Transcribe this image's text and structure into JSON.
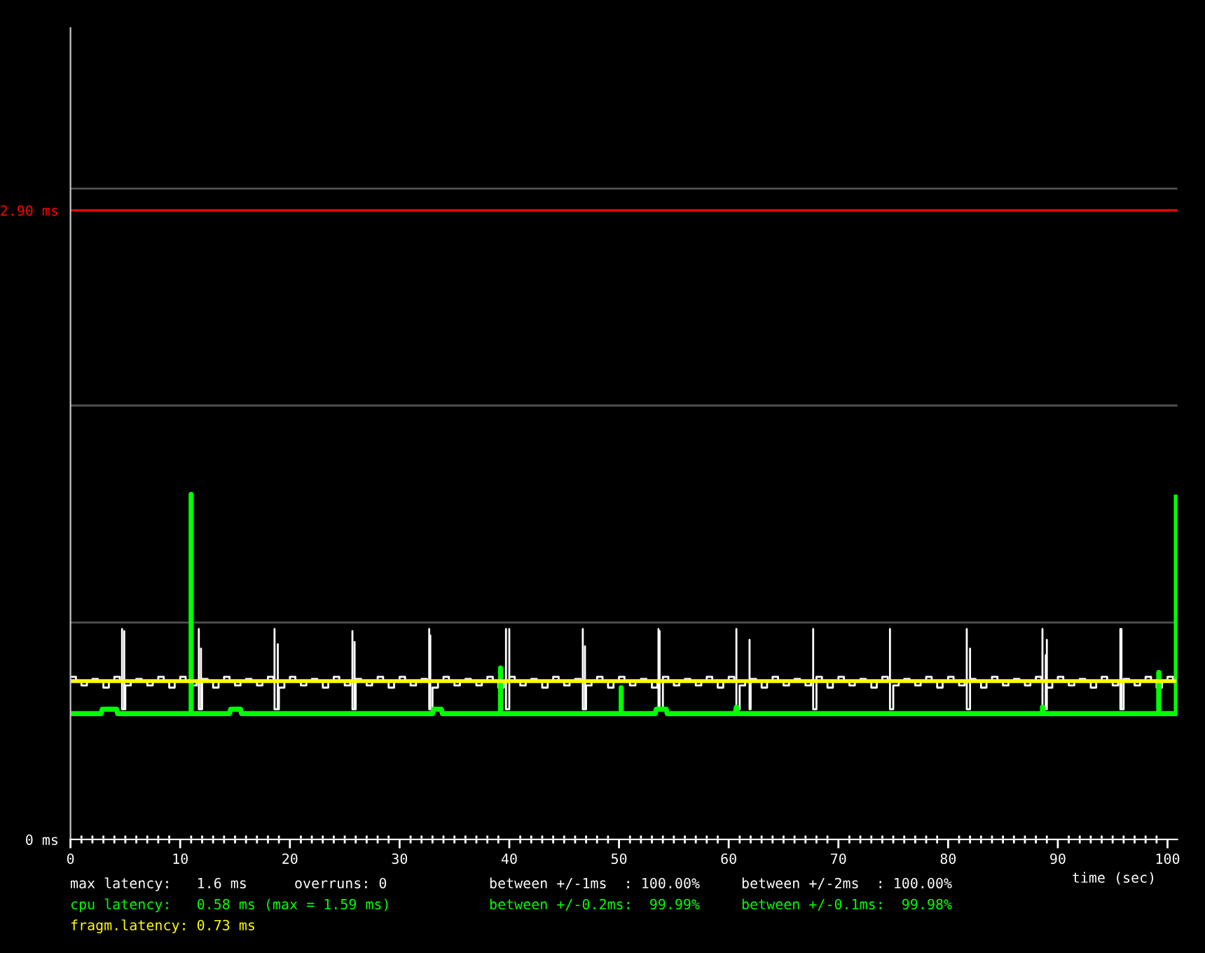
{
  "chart_data": {
    "type": "line",
    "xlabel": "time (sec)",
    "xlim": [
      0,
      100.9
    ],
    "xticks": [
      0,
      {
        "value": 1,
        "label": null
      },
      {
        "value": 2,
        "label": null
      },
      {
        "value": 3,
        "label": null
      },
      {
        "value": 4,
        "label": null
      },
      {
        "value": 5,
        "label": null
      },
      {
        "value": 6,
        "label": null
      },
      {
        "value": 7,
        "label": null
      },
      {
        "value": 8,
        "label": null
      },
      {
        "value": 9,
        "label": null
      },
      10,
      {
        "value": 11,
        "label": null
      },
      {
        "value": 12,
        "label": null
      },
      {
        "value": 13,
        "label": null
      },
      {
        "value": 14,
        "label": null
      },
      {
        "value": 15,
        "label": null
      },
      {
        "value": 16,
        "label": null
      },
      {
        "value": 17,
        "label": null
      },
      {
        "value": 18,
        "label": null
      },
      {
        "value": 19,
        "label": null
      },
      20,
      {
        "value": 21,
        "label": null
      },
      {
        "value": 22,
        "label": null
      },
      {
        "value": 23,
        "label": null
      },
      {
        "value": 24,
        "label": null
      },
      {
        "value": 25,
        "label": null
      },
      {
        "value": 26,
        "label": null
      },
      {
        "value": 27,
        "label": null
      },
      {
        "value": 28,
        "label": null
      },
      {
        "value": 29,
        "label": null
      },
      30,
      {
        "value": 31,
        "label": null
      },
      {
        "value": 32,
        "label": null
      },
      {
        "value": 33,
        "label": null
      },
      {
        "value": 34,
        "label": null
      },
      {
        "value": 35,
        "label": null
      },
      {
        "value": 36,
        "label": null
      },
      {
        "value": 37,
        "label": null
      },
      {
        "value": 38,
        "label": null
      },
      {
        "value": 39,
        "label": null
      },
      40,
      {
        "value": 41,
        "label": null
      },
      {
        "value": 42,
        "label": null
      },
      {
        "value": 43,
        "label": null
      },
      {
        "value": 44,
        "label": null
      },
      {
        "value": 45,
        "label": null
      },
      {
        "value": 46,
        "label": null
      },
      {
        "value": 47,
        "label": null
      },
      {
        "value": 48,
        "label": null
      },
      {
        "value": 49,
        "label": null
      },
      50,
      {
        "value": 51,
        "label": null
      },
      {
        "value": 52,
        "label": null
      },
      {
        "value": 53,
        "label": null
      },
      {
        "value": 54,
        "label": null
      },
      {
        "value": 55,
        "label": null
      },
      {
        "value": 56,
        "label": null
      },
      {
        "value": 57,
        "label": null
      },
      {
        "value": 58,
        "label": null
      },
      {
        "value": 59,
        "label": null
      },
      60,
      {
        "value": 61,
        "label": null
      },
      {
        "value": 62,
        "label": null
      },
      {
        "value": 63,
        "label": null
      },
      {
        "value": 64,
        "label": null
      },
      {
        "value": 65,
        "label": null
      },
      {
        "value": 66,
        "label": null
      },
      {
        "value": 67,
        "label": null
      },
      {
        "value": 68,
        "label": null
      },
      {
        "value": 69,
        "label": null
      },
      70,
      {
        "value": 71,
        "label": null
      },
      {
        "value": 72,
        "label": null
      },
      {
        "value": 73,
        "label": null
      },
      {
        "value": 74,
        "label": null
      },
      {
        "value": 75,
        "label": null
      },
      {
        "value": 76,
        "label": null
      },
      {
        "value": 77,
        "label": null
      },
      {
        "value": 78,
        "label": null
      },
      {
        "value": 79,
        "label": null
      },
      80,
      {
        "value": 81,
        "label": null
      },
      {
        "value": 82,
        "label": null
      },
      {
        "value": 83,
        "label": null
      },
      {
        "value": 84,
        "label": null
      },
      {
        "value": 85,
        "label": null
      },
      {
        "value": 86,
        "label": null
      },
      {
        "value": 87,
        "label": null
      },
      {
        "value": 88,
        "label": null
      },
      {
        "value": 89,
        "label": null
      },
      90,
      {
        "value": 91,
        "label": null
      },
      {
        "value": 92,
        "label": null
      },
      {
        "value": 93,
        "label": null
      },
      {
        "value": 94,
        "label": null
      },
      {
        "value": 95,
        "label": null
      },
      {
        "value": 96,
        "label": null
      },
      {
        "value": 97,
        "label": null
      },
      {
        "value": 98,
        "label": null
      },
      {
        "value": 99,
        "label": null
      },
      100
    ],
    "ylim": [
      0,
      3.74
    ],
    "yticks": [
      {
        "value": 0,
        "label": "0 ms"
      },
      {
        "value": 1,
        "label": null
      },
      {
        "value": 2,
        "label": null
      },
      {
        "value": 2.9,
        "label": "2.90 ms"
      },
      {
        "value": 3,
        "label": null
      }
    ],
    "grid": "y",
    "ref_lines": [
      {
        "axis": "y",
        "value": 2.9,
        "color": "#ff0000"
      }
    ],
    "series": [
      {
        "type": "step",
        "color": "#ffffff",
        "x": [
          0,
          0.5,
          1,
          1.5,
          2,
          2.5,
          3,
          3.5,
          4,
          4.5,
          4.7,
          4.7,
          4.9,
          4.9,
          5,
          5.5,
          6,
          6.5,
          7,
          7.5,
          8,
          8.5,
          9,
          9.5,
          10,
          10.5,
          11,
          11.5,
          11.7,
          11.7,
          11.9,
          11.9,
          12,
          12.5,
          13,
          13.5,
          14,
          14.5,
          15,
          15.5,
          16,
          16.5,
          17,
          17.5,
          18,
          18.5,
          18.6,
          18.6,
          18.9,
          18.9,
          19,
          19.5,
          20,
          20.5,
          21,
          21.5,
          22,
          22.5,
          23,
          23.5,
          24,
          24.5,
          25,
          25.5,
          25.7,
          25.7,
          25.9,
          25.9,
          26,
          26.5,
          27,
          27.5,
          28,
          28.5,
          29,
          29.5,
          30,
          30.5,
          31,
          31.5,
          32,
          32.5,
          32.7,
          32.7,
          32.8,
          32.8,
          33,
          33.5,
          34,
          34.5,
          35,
          35.5,
          36,
          36.5,
          37,
          37.5,
          38,
          38.5,
          39,
          39.5,
          39.7,
          39.7,
          40,
          40,
          40,
          40.5,
          41,
          41.5,
          42,
          42.5,
          43,
          43.5,
          44,
          44.5,
          45,
          45.5,
          46,
          46.5,
          46.7,
          46.7,
          46.9,
          46.9,
          47,
          47.5,
          48,
          48.5,
          49,
          49.5,
          50,
          50.5,
          51,
          51.5,
          52,
          52.5,
          53,
          53.5,
          53.6,
          53.6,
          53.7,
          53.7,
          54,
          54.5,
          55,
          55.5,
          56,
          56.5,
          57,
          57.5,
          58,
          58.5,
          59,
          59.5,
          60,
          60.5,
          60.7,
          60.7,
          61,
          61.5,
          61.9,
          61.9,
          62,
          62.5,
          63,
          63.5,
          64,
          64.5,
          65,
          65.5,
          66,
          66.5,
          67,
          67.5,
          67.7,
          67.7,
          68,
          68.5,
          69,
          69.5,
          70,
          70.5,
          71,
          71.5,
          72,
          72.5,
          73,
          73.5,
          74,
          74.5,
          74.7,
          74.7,
          75,
          75.5,
          76,
          76.5,
          77,
          77.5,
          78,
          78.5,
          79,
          79.5,
          80,
          80.5,
          81,
          81.5,
          81.7,
          81.7,
          82,
          82,
          82,
          82.5,
          83,
          83.5,
          84,
          84.5,
          85,
          85.5,
          86,
          86.5,
          87,
          87.5,
          88,
          88.5,
          88.6,
          88.6,
          88.9,
          88.9,
          89,
          89,
          89,
          89.5,
          90,
          90.5,
          91,
          91.5,
          92,
          92.5,
          93,
          93.5,
          94,
          94.5,
          95,
          95.5,
          95.7,
          95.7,
          95.8,
          95.8,
          96,
          96.5,
          97,
          97.5,
          98,
          98.5,
          99,
          99.5,
          100,
          100.5,
          100.8
        ],
        "values": [
          0.75,
          0.73,
          0.71,
          0.73,
          0.74,
          0.73,
          0.7,
          0.73,
          0.75,
          0.73,
          0.97,
          0.6,
          0.96,
          0.6,
          0.71,
          0.73,
          0.74,
          0.73,
          0.71,
          0.73,
          0.75,
          0.73,
          0.7,
          0.73,
          0.75,
          0.73,
          0.71,
          0.73,
          0.97,
          0.6,
          0.88,
          0.6,
          0.74,
          0.73,
          0.7,
          0.73,
          0.75,
          0.73,
          0.71,
          0.73,
          0.74,
          0.73,
          0.71,
          0.73,
          0.75,
          0.73,
          0.97,
          0.6,
          0.9,
          0.6,
          0.7,
          0.73,
          0.75,
          0.73,
          0.71,
          0.73,
          0.74,
          0.73,
          0.7,
          0.73,
          0.75,
          0.73,
          0.71,
          0.73,
          0.96,
          0.6,
          0.91,
          0.6,
          0.74,
          0.73,
          0.71,
          0.73,
          0.75,
          0.73,
          0.7,
          0.73,
          0.75,
          0.73,
          0.71,
          0.73,
          0.74,
          0.73,
          0.97,
          0.6,
          0.94,
          0.6,
          0.7,
          0.73,
          0.75,
          0.73,
          0.71,
          0.73,
          0.74,
          0.73,
          0.71,
          0.73,
          0.75,
          0.73,
          0.7,
          0.73,
          0.97,
          0.6,
          0.97,
          0.6,
          0.75,
          0.73,
          0.71,
          0.73,
          0.74,
          0.73,
          0.7,
          0.73,
          0.75,
          0.73,
          0.71,
          0.73,
          0.74,
          0.73,
          0.97,
          0.6,
          0.89,
          0.6,
          0.71,
          0.73,
          0.75,
          0.73,
          0.7,
          0.73,
          0.75,
          0.73,
          0.71,
          0.73,
          0.74,
          0.73,
          0.7,
          0.73,
          0.97,
          0.6,
          0.96,
          0.6,
          0.75,
          0.73,
          0.71,
          0.73,
          0.74,
          0.73,
          0.71,
          0.73,
          0.75,
          0.73,
          0.7,
          0.73,
          0.75,
          0.73,
          0.97,
          0.6,
          0.71,
          0.73,
          0.92,
          0.6,
          0.74,
          0.73,
          0.7,
          0.73,
          0.75,
          0.73,
          0.71,
          0.73,
          0.74,
          0.73,
          0.71,
          0.73,
          0.97,
          0.6,
          0.75,
          0.73,
          0.7,
          0.73,
          0.75,
          0.73,
          0.71,
          0.73,
          0.74,
          0.73,
          0.7,
          0.73,
          0.75,
          0.73,
          0.97,
          0.6,
          0.71,
          0.73,
          0.74,
          0.73,
          0.71,
          0.73,
          0.75,
          0.73,
          0.7,
          0.73,
          0.75,
          0.73,
          0.71,
          0.73,
          0.97,
          0.6,
          0.88,
          0.6,
          0.74,
          0.73,
          0.7,
          0.73,
          0.75,
          0.73,
          0.71,
          0.73,
          0.74,
          0.73,
          0.71,
          0.73,
          0.75,
          0.73,
          0.97,
          0.6,
          0.85,
          0.6,
          0.92,
          0.6,
          0.7,
          0.73,
          0.75,
          0.73,
          0.71,
          0.73,
          0.74,
          0.73,
          0.7,
          0.73,
          0.75,
          0.73,
          0.71,
          0.73,
          0.97,
          0.6,
          0.97,
          0.6,
          0.74,
          0.73,
          0.71,
          0.73,
          0.75,
          0.73,
          0.7,
          0.73,
          0.75,
          0.73,
          0.73
        ]
      },
      {
        "color": "#00ff00",
        "x": [
          0,
          2.8,
          2.9,
          4.2,
          4.3,
          11,
          11,
          11,
          14.5,
          14.6,
          15.5,
          15.6,
          33,
          33.1,
          33.8,
          33.9,
          39.2,
          39.2,
          39.2,
          50.2,
          50.2,
          50.2,
          53.3,
          53.4,
          54.3,
          54.4,
          60.6,
          60.7,
          60.8,
          88.6,
          88.6,
          88.7,
          99.2,
          99.2,
          99.2,
          100.8,
          100.8
        ],
        "values": [
          0.58,
          0.58,
          0.6,
          0.6,
          0.58,
          0.58,
          1.59,
          0.58,
          0.58,
          0.6,
          0.6,
          0.58,
          0.58,
          0.6,
          0.6,
          0.58,
          0.58,
          0.79,
          0.58,
          0.58,
          0.7,
          0.58,
          0.58,
          0.6,
          0.6,
          0.58,
          0.58,
          0.61,
          0.58,
          0.58,
          0.61,
          0.58,
          0.58,
          0.77,
          0.58,
          0.58,
          1.59
        ]
      },
      {
        "color": "#ffff00",
        "x": [
          0,
          100.8
        ],
        "values": [
          0.73,
          0.73
        ]
      }
    ],
    "annotations": [
      "max latency:   1.6 ms",
      "overruns: 0",
      "between +/-1ms  : 100.00%",
      "between +/-2ms  : 100.00%",
      "cpu latency:   0.58 ms (max = 1.59 ms)",
      "between +/-0.2ms:  99.99%",
      "between +/-0.1ms:  99.98%",
      "fragm.latency: 0.73 ms"
    ]
  }
}
